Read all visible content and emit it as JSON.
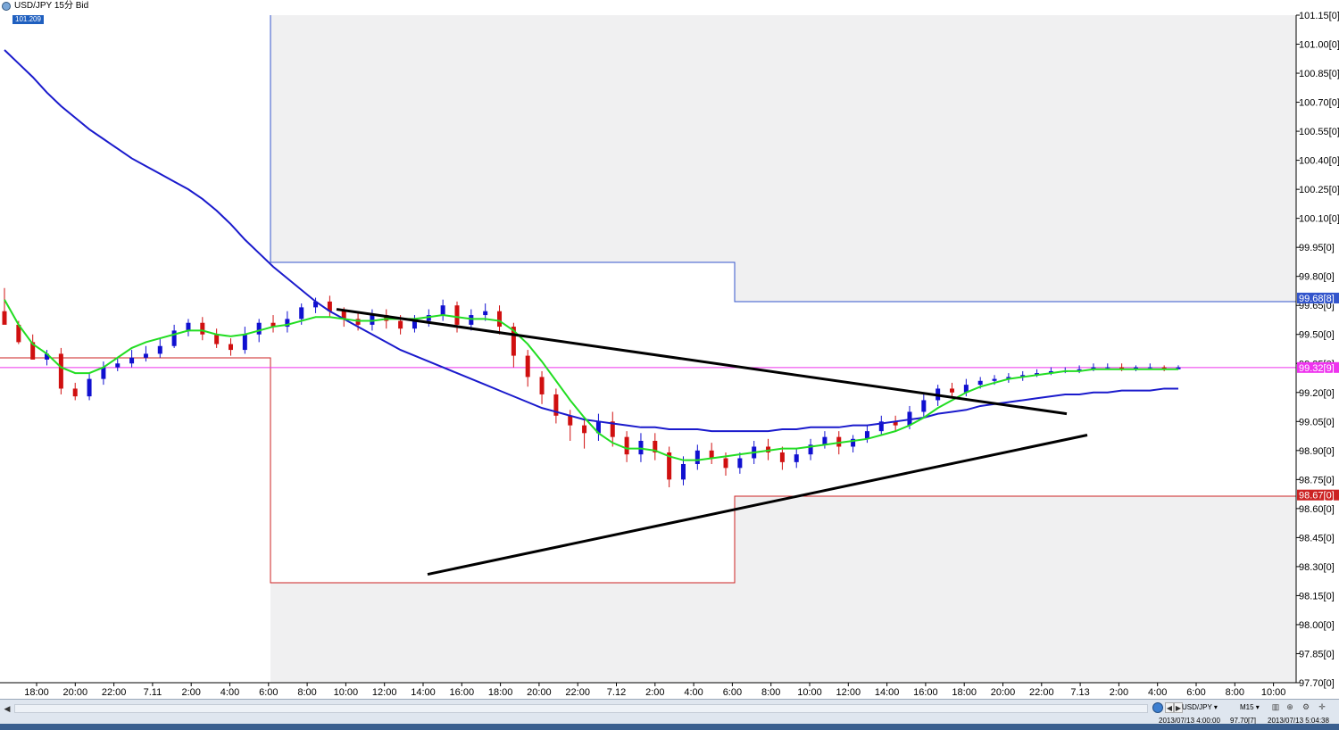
{
  "window": {
    "title": "USD/JPY 15分 Bid",
    "price_badge": "101.209"
  },
  "colors": {
    "background": "#ffffff",
    "shaded": "#f0f0f1",
    "bull": "#1010d0",
    "bear": "#d01010",
    "sma_fast": "#22dd22",
    "sma_slow": "#1a1acc",
    "trend": "#000000",
    "box_blue": "#3355cc",
    "box_red": "#cc2222",
    "hline": "#ee33ee"
  },
  "chart_data": {
    "type": "candlestick",
    "instrument": "USD/JPY",
    "timeframe": "15分",
    "price_side": "Bid",
    "y_ticks": [
      "101.15[0]",
      "101.00[0]",
      "100.85[0]",
      "100.70[0]",
      "100.55[0]",
      "100.40[0]",
      "100.25[0]",
      "100.10[0]",
      "99.95[0]",
      "99.80[0]",
      "99.65[0]",
      "99.50[0]",
      "99.35[0]",
      "99.20[0]",
      "99.05[0]",
      "98.90[0]",
      "98.75[0]",
      "98.60[0]",
      "98.45[0]",
      "98.30[0]",
      "98.15[0]",
      "98.00[0]",
      "97.85[0]",
      "97.70[0]"
    ],
    "x_ticks": [
      "18:00",
      "20:00",
      "22:00",
      "7.11",
      "2:00",
      "4:00",
      "6:00",
      "8:00",
      "10:00",
      "12:00",
      "14:00",
      "16:00",
      "18:00",
      "20:00",
      "22:00",
      "7.12",
      "2:00",
      "4:00",
      "6:00",
      "8:00",
      "10:00",
      "12:00",
      "14:00",
      "16:00",
      "18:00",
      "20:00",
      "22:00",
      "7.13",
      "2:00",
      "4:00",
      "6:00",
      "8:00",
      "10:00"
    ],
    "ylim": [
      97.7,
      101.15
    ],
    "price_labels": [
      {
        "text": "99.68[8]",
        "value": 99.688,
        "color": "#3355cc"
      },
      {
        "text": "99.32[9]",
        "value": 99.329,
        "color": "#ee33ee"
      },
      {
        "text": "98.67[0]",
        "value": 98.67,
        "color": "#cc2222"
      }
    ],
    "prev_day_high": [
      {
        "from": "6:00",
        "to": "6:00",
        "value": 101.15
      },
      {
        "from": "6:00",
        "to": "6:00",
        "value": 99.9
      },
      {
        "from": "6:00",
        "to": "6:00",
        "value": 99.688
      }
    ],
    "prev_day_low": [
      {
        "from": "18:00",
        "to": "6:00",
        "value": 99.36
      },
      {
        "from": "6:00",
        "to": "6:00",
        "value": 98.22
      },
      {
        "from": "6:00",
        "to": "10:00",
        "value": 98.67
      }
    ],
    "trendlines": [
      {
        "from_price": 99.63,
        "to_price": 99.09
      },
      {
        "from_price": 98.26,
        "to_price": 98.98
      }
    ],
    "candles": [
      [
        99.62,
        99.55,
        99.57,
        99.74
      ],
      [
        99.55,
        99.46,
        99.45,
        99.57
      ],
      [
        99.46,
        99.37,
        99.38,
        99.5
      ],
      [
        99.37,
        99.4,
        99.34,
        99.42
      ],
      [
        99.4,
        99.22,
        99.19,
        99.43
      ],
      [
        99.22,
        99.18,
        99.16,
        99.25
      ],
      [
        99.18,
        99.27,
        99.16,
        99.3
      ],
      [
        99.27,
        99.33,
        99.24,
        99.36
      ],
      [
        99.33,
        99.35,
        99.31,
        99.38
      ],
      [
        99.35,
        99.38,
        99.33,
        99.42
      ],
      [
        99.38,
        99.4,
        99.36,
        99.44
      ],
      [
        99.4,
        99.44,
        99.38,
        99.48
      ],
      [
        99.44,
        99.52,
        99.43,
        99.55
      ],
      [
        99.52,
        99.56,
        99.49,
        99.58
      ],
      [
        99.56,
        99.5,
        99.47,
        99.59
      ],
      [
        99.5,
        99.45,
        99.43,
        99.53
      ],
      [
        99.45,
        99.42,
        99.39,
        99.48
      ],
      [
        99.42,
        99.5,
        99.4,
        99.54
      ],
      [
        99.5,
        99.56,
        99.46,
        99.58
      ],
      [
        99.56,
        99.54,
        99.51,
        99.6
      ],
      [
        99.54,
        99.58,
        99.51,
        99.62
      ],
      [
        99.58,
        99.64,
        99.55,
        99.66
      ],
      [
        99.64,
        99.67,
        99.61,
        99.69
      ],
      [
        99.67,
        99.62,
        99.59,
        99.7
      ],
      [
        99.62,
        99.58,
        99.54,
        99.64
      ],
      [
        99.58,
        99.55,
        99.52,
        99.61
      ],
      [
        99.55,
        99.6,
        99.52,
        99.63
      ],
      [
        99.6,
        99.57,
        99.53,
        99.63
      ],
      [
        99.57,
        99.53,
        99.5,
        99.6
      ],
      [
        99.53,
        99.57,
        99.51,
        99.6
      ],
      [
        99.57,
        99.6,
        99.54,
        99.63
      ],
      [
        99.6,
        99.65,
        99.57,
        99.68
      ],
      [
        99.65,
        99.55,
        99.51,
        99.67
      ],
      [
        99.55,
        99.6,
        99.52,
        99.63
      ],
      [
        99.6,
        99.62,
        99.57,
        99.66
      ],
      [
        99.62,
        99.54,
        99.5,
        99.65
      ],
      [
        99.54,
        99.39,
        99.33,
        99.56
      ],
      [
        99.39,
        99.28,
        99.23,
        99.42
      ],
      [
        99.28,
        99.19,
        99.14,
        99.31
      ],
      [
        99.19,
        99.08,
        99.04,
        99.22
      ],
      [
        99.08,
        99.03,
        98.95,
        99.11
      ],
      [
        99.03,
        98.99,
        98.91,
        99.06
      ],
      [
        98.99,
        99.05,
        98.95,
        99.09
      ],
      [
        99.05,
        98.97,
        98.92,
        99.1
      ],
      [
        98.97,
        98.88,
        98.84,
        99.0
      ],
      [
        98.88,
        98.95,
        98.84,
        98.99
      ],
      [
        98.95,
        98.89,
        98.85,
        98.99
      ],
      [
        98.89,
        98.75,
        98.71,
        98.92
      ],
      [
        98.75,
        98.83,
        98.72,
        98.87
      ],
      [
        98.83,
        98.9,
        98.8,
        98.93
      ],
      [
        98.9,
        98.86,
        98.83,
        98.94
      ],
      [
        98.86,
        98.81,
        98.77,
        98.89
      ],
      [
        98.81,
        98.86,
        98.78,
        98.89
      ],
      [
        98.86,
        98.92,
        98.83,
        98.95
      ],
      [
        98.92,
        98.89,
        98.85,
        98.96
      ],
      [
        98.89,
        98.84,
        98.8,
        98.92
      ],
      [
        98.84,
        98.88,
        98.81,
        98.91
      ],
      [
        98.88,
        98.93,
        98.85,
        98.96
      ],
      [
        98.93,
        98.97,
        98.91,
        99.0
      ],
      [
        98.97,
        98.92,
        98.88,
        99.0
      ],
      [
        98.92,
        98.96,
        98.89,
        98.98
      ],
      [
        98.96,
        99.0,
        98.94,
        99.03
      ],
      [
        99.0,
        99.05,
        98.98,
        99.08
      ],
      [
        99.05,
        99.03,
        99.0,
        99.08
      ],
      [
        99.03,
        99.1,
        99.01,
        99.13
      ],
      [
        99.1,
        99.16,
        99.07,
        99.19
      ],
      [
        99.16,
        99.22,
        99.13,
        99.24
      ],
      [
        99.22,
        99.2,
        99.17,
        99.25
      ],
      [
        99.2,
        99.24,
        99.18,
        99.27
      ],
      [
        99.24,
        99.26,
        99.22,
        99.28
      ],
      [
        99.26,
        99.27,
        99.24,
        99.29
      ],
      [
        99.27,
        99.28,
        99.25,
        99.3
      ],
      [
        99.28,
        99.29,
        99.26,
        99.31
      ],
      [
        99.29,
        99.3,
        99.28,
        99.32
      ],
      [
        99.3,
        99.31,
        99.29,
        99.33
      ],
      [
        99.31,
        99.31,
        99.3,
        99.33
      ],
      [
        99.31,
        99.32,
        99.3,
        99.34
      ],
      [
        99.32,
        99.33,
        99.31,
        99.35
      ],
      [
        99.33,
        99.33,
        99.32,
        99.35
      ],
      [
        99.33,
        99.32,
        99.31,
        99.35
      ],
      [
        99.32,
        99.33,
        99.31,
        99.34
      ],
      [
        99.33,
        99.33,
        99.32,
        99.35
      ],
      [
        99.33,
        99.32,
        99.31,
        99.34
      ],
      [
        99.32,
        99.33,
        99.32,
        99.34
      ]
    ],
    "sma_fast": [
      99.68,
      99.55,
      99.45,
      99.4,
      99.33,
      99.3,
      99.3,
      99.33,
      99.38,
      99.43,
      99.46,
      99.48,
      99.5,
      99.52,
      99.52,
      99.5,
      99.49,
      99.5,
      99.52,
      99.54,
      99.55,
      99.57,
      99.59,
      99.59,
      99.58,
      99.57,
      99.57,
      99.58,
      99.58,
      99.58,
      99.59,
      99.6,
      99.59,
      99.58,
      99.58,
      99.57,
      99.52,
      99.45,
      99.36,
      99.26,
      99.16,
      99.07,
      98.99,
      98.94,
      98.91,
      98.91,
      98.9,
      98.87,
      98.85,
      98.85,
      98.86,
      98.87,
      98.88,
      98.89,
      98.9,
      98.91,
      98.91,
      98.92,
      98.93,
      98.94,
      98.95,
      98.96,
      98.98,
      99.0,
      99.03,
      99.07,
      99.12,
      99.16,
      99.2,
      99.23,
      99.25,
      99.27,
      99.28,
      99.29,
      99.3,
      99.31,
      99.31,
      99.32,
      99.32,
      99.32,
      99.32,
      99.32,
      99.32,
      99.32
    ],
    "sma_slow": [
      100.97,
      100.9,
      100.83,
      100.75,
      100.68,
      100.62,
      100.56,
      100.51,
      100.46,
      100.41,
      100.37,
      100.33,
      100.29,
      100.25,
      100.2,
      100.14,
      100.07,
      99.99,
      99.92,
      99.85,
      99.79,
      99.73,
      99.67,
      99.62,
      99.58,
      99.54,
      99.5,
      99.46,
      99.42,
      99.39,
      99.36,
      99.33,
      99.3,
      99.27,
      99.24,
      99.21,
      99.18,
      99.15,
      99.12,
      99.1,
      99.08,
      99.06,
      99.05,
      99.04,
      99.03,
      99.02,
      99.02,
      99.01,
      99.01,
      99.01,
      99.0,
      99.0,
      99.0,
      99.0,
      99.0,
      99.01,
      99.01,
      99.02,
      99.02,
      99.02,
      99.03,
      99.03,
      99.04,
      99.05,
      99.06,
      99.07,
      99.09,
      99.1,
      99.11,
      99.13,
      99.14,
      99.15,
      99.16,
      99.17,
      99.18,
      99.19,
      99.19,
      99.2,
      99.2,
      99.21,
      99.21,
      99.21,
      99.22,
      99.22
    ]
  },
  "status": {
    "symbol": "USD/JPY",
    "timeframe": "M15",
    "info1": "2013/07/13 4:00:00",
    "info2": "97.70[7]",
    "info3": "2013/07/13 5:04:38"
  }
}
